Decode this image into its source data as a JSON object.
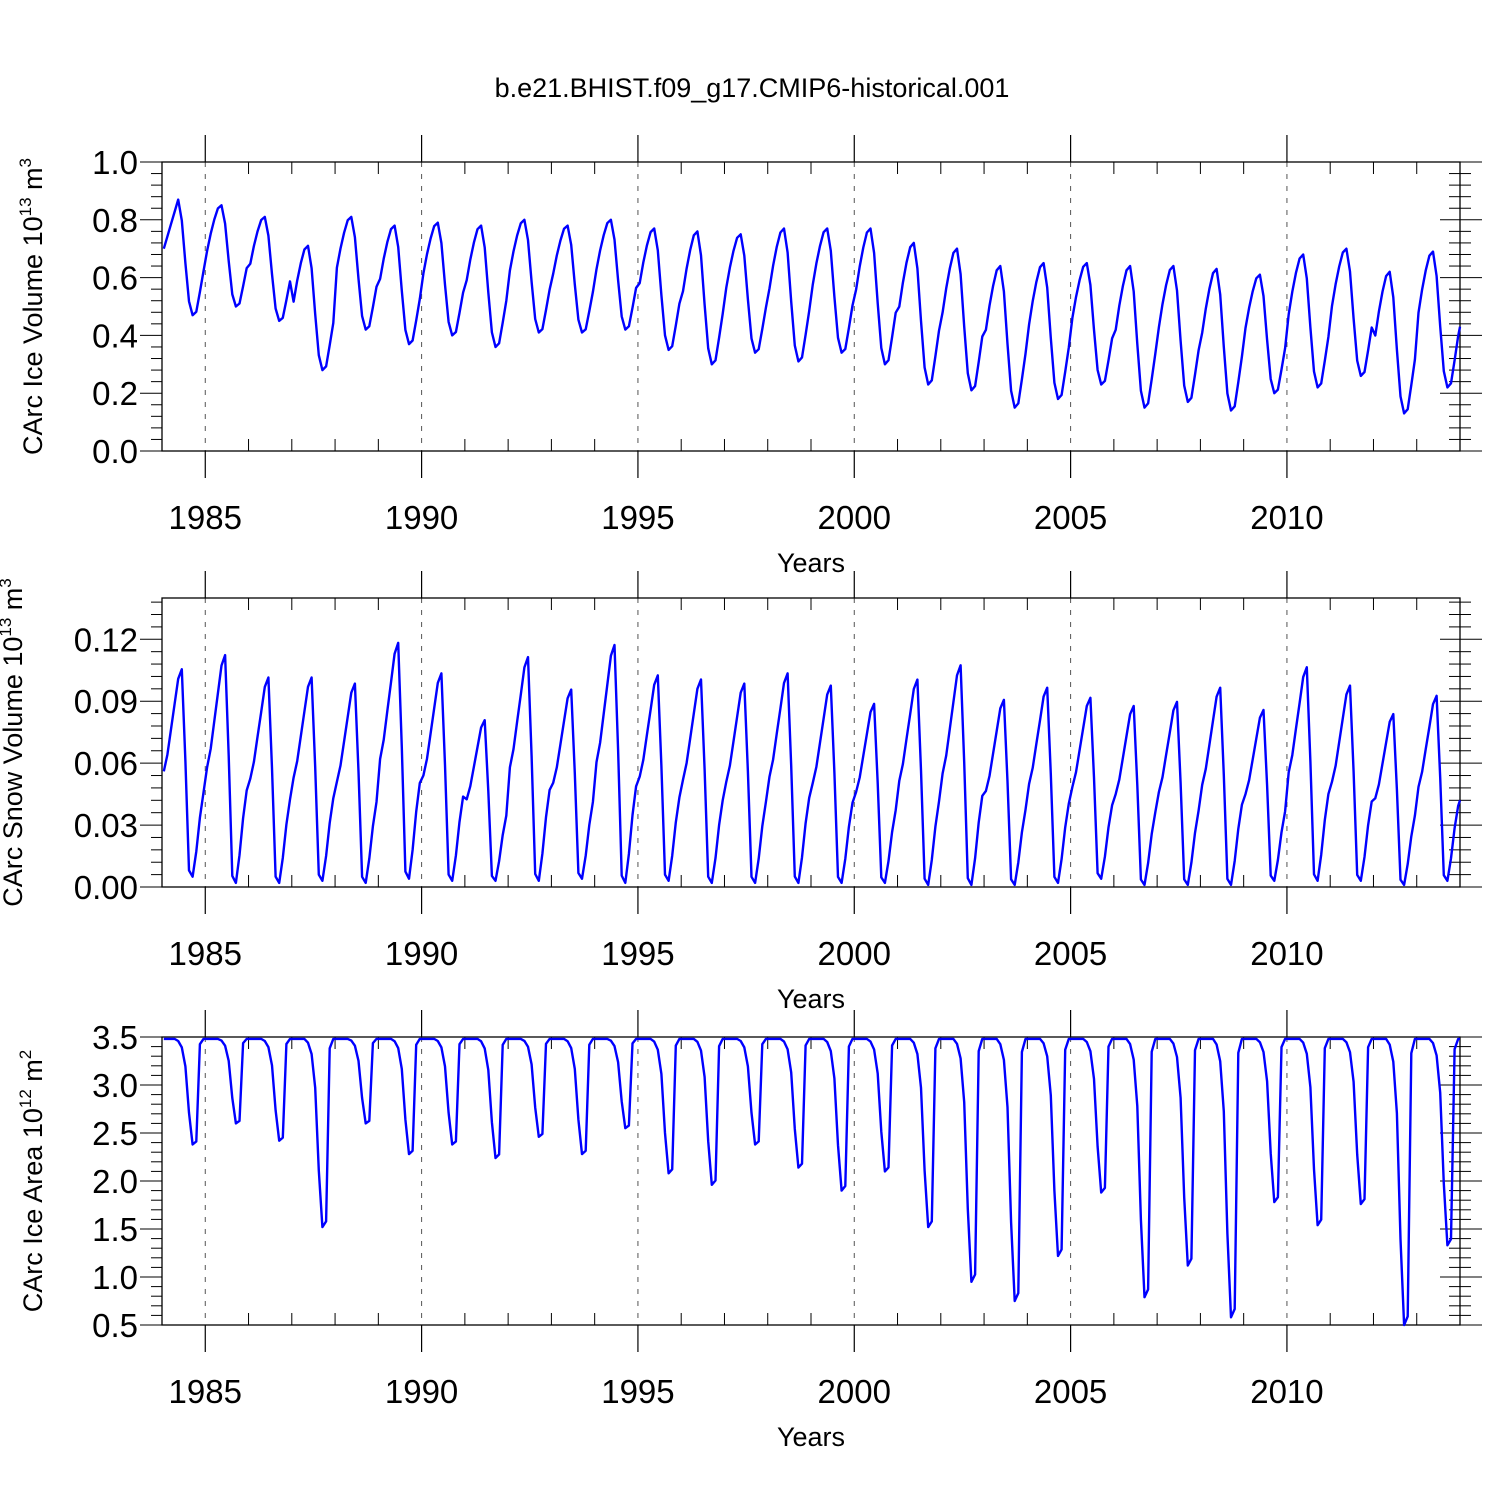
{
  "title": "b.e21.BHIST.f09_g17.CMIP6-historical.001",
  "series_color": "#0000ff",
  "chart_data": [
    {
      "type": "line",
      "id": "ice-volume",
      "ylabel_main": "CArc Ice Volume 10",
      "ylabel_exp": "13",
      "ylabel_unit": " m",
      "ylabel_unit_exp": "3",
      "xlabel": "Years",
      "xlim": [
        1984.0,
        2014.0
      ],
      "ylim": [
        0.0,
        1.0
      ],
      "yticks": [
        0.0,
        0.2,
        0.4,
        0.6,
        0.8,
        1.0
      ],
      "yticklabels": [
        "0.0",
        "0.2",
        "0.4",
        "0.6",
        "0.8",
        "1.0"
      ],
      "xticks": [
        1985,
        1990,
        1995,
        2000,
        2005,
        2010
      ],
      "xticklabels": [
        "1985",
        "1990",
        "1995",
        "2000",
        "2005",
        "2010"
      ],
      "grid": "vertical dashed at major x ticks",
      "min_month": 9,
      "annual": {
        "years": [
          1984,
          1985,
          1986,
          1987,
          1988,
          1989,
          1990,
          1991,
          1992,
          1993,
          1994,
          1995,
          1996,
          1997,
          1998,
          1999,
          2000,
          2001,
          2002,
          2003,
          2004,
          2005,
          2006,
          2007,
          2008,
          2009,
          2010,
          2011,
          2012,
          2013
        ],
        "max": [
          0.87,
          0.85,
          0.81,
          0.71,
          0.81,
          0.78,
          0.79,
          0.78,
          0.8,
          0.78,
          0.8,
          0.77,
          0.76,
          0.75,
          0.77,
          0.77,
          0.77,
          0.72,
          0.7,
          0.64,
          0.65,
          0.65,
          0.64,
          0.64,
          0.63,
          0.61,
          0.68,
          0.7,
          0.62,
          0.69
        ],
        "min": [
          0.47,
          0.5,
          0.45,
          0.28,
          0.42,
          0.37,
          0.4,
          0.36,
          0.41,
          0.41,
          0.42,
          0.35,
          0.3,
          0.34,
          0.31,
          0.34,
          0.3,
          0.23,
          0.21,
          0.15,
          0.18,
          0.23,
          0.15,
          0.17,
          0.14,
          0.2,
          0.22,
          0.26,
          0.13,
          0.22
        ]
      },
      "start_value": 0.7,
      "end_value": 0.43
    },
    {
      "type": "line",
      "id": "snow-volume",
      "ylabel_main": "CArc Snow Volume 10",
      "ylabel_exp": "13",
      "ylabel_unit": " m",
      "ylabel_unit_exp": "3",
      "xlabel": "Years",
      "xlim": [
        1984.0,
        2014.0
      ],
      "ylim": [
        0.0,
        0.14
      ],
      "yticks": [
        0.0,
        0.03,
        0.06,
        0.09,
        0.12
      ],
      "yticklabels": [
        "0.00",
        "0.03",
        "0.06",
        "0.09",
        "0.12"
      ],
      "xticks": [
        1985,
        1990,
        1995,
        2000,
        2005,
        2010
      ],
      "xticklabels": [
        "1985",
        "1990",
        "1995",
        "2000",
        "2005",
        "2010"
      ],
      "grid": "vertical dashed at major x ticks",
      "min_month": 8,
      "annual": {
        "years": [
          1984,
          1985,
          1986,
          1987,
          1988,
          1989,
          1990,
          1991,
          1992,
          1993,
          1994,
          1995,
          1996,
          1997,
          1998,
          1999,
          2000,
          2001,
          2002,
          2003,
          2004,
          2005,
          2006,
          2007,
          2008,
          2009,
          2010,
          2011,
          2012,
          2013
        ],
        "max": [
          0.107,
          0.114,
          0.103,
          0.103,
          0.1,
          0.12,
          0.105,
          0.082,
          0.113,
          0.097,
          0.119,
          0.104,
          0.102,
          0.1,
          0.105,
          0.099,
          0.09,
          0.102,
          0.109,
          0.092,
          0.098,
          0.093,
          0.089,
          0.091,
          0.098,
          0.087,
          0.108,
          0.099,
          0.085,
          0.094
        ],
        "min": [
          0.005,
          0.002,
          0.002,
          0.003,
          0.002,
          0.004,
          0.003,
          0.003,
          0.003,
          0.004,
          0.002,
          0.003,
          0.002,
          0.002,
          0.002,
          0.002,
          0.002,
          0.001,
          0.001,
          0.001,
          0.002,
          0.004,
          0.001,
          0.001,
          0.001,
          0.003,
          0.003,
          0.003,
          0.001,
          0.003
        ]
      },
      "start_value": 0.061,
      "end_value": 0.042
    },
    {
      "type": "line",
      "id": "ice-area",
      "ylabel_main": "CArc Ice Area 10",
      "ylabel_exp": "12",
      "ylabel_unit": " m",
      "ylabel_unit_exp": "2",
      "xlabel": "Years",
      "xlim": [
        1984.0,
        2014.0
      ],
      "ylim": [
        0.5,
        3.5
      ],
      "yticks": [
        0.5,
        1.0,
        1.5,
        2.0,
        2.5,
        3.0,
        3.5
      ],
      "yticklabels": [
        "0.5",
        "1.0",
        "1.5",
        "2.0",
        "2.5",
        "3.0",
        "3.5"
      ],
      "xticks": [
        1985,
        1990,
        1995,
        2000,
        2005,
        2010
      ],
      "xticklabels": [
        "1985",
        "1990",
        "1995",
        "2000",
        "2005",
        "2010"
      ],
      "grid": "vertical dashed at major x ticks",
      "min_month": 9,
      "annual": {
        "years": [
          1984,
          1985,
          1986,
          1987,
          1988,
          1989,
          1990,
          1991,
          1992,
          1993,
          1994,
          1995,
          1996,
          1997,
          1998,
          1999,
          2000,
          2001,
          2002,
          2003,
          2004,
          2005,
          2006,
          2007,
          2008,
          2009,
          2010,
          2011,
          2012,
          2013
        ],
        "max": [
          3.48,
          3.48,
          3.48,
          3.48,
          3.48,
          3.48,
          3.48,
          3.48,
          3.48,
          3.48,
          3.48,
          3.48,
          3.48,
          3.48,
          3.48,
          3.48,
          3.48,
          3.48,
          3.48,
          3.48,
          3.48,
          3.48,
          3.48,
          3.48,
          3.48,
          3.48,
          3.48,
          3.48,
          3.48,
          3.48
        ],
        "min": [
          2.38,
          2.6,
          2.42,
          1.52,
          2.6,
          2.28,
          2.38,
          2.24,
          2.46,
          2.28,
          2.55,
          2.08,
          1.96,
          2.38,
          2.14,
          1.9,
          2.1,
          1.52,
          0.95,
          0.75,
          1.22,
          1.88,
          0.79,
          1.12,
          0.58,
          1.78,
          1.54,
          1.76,
          0.5,
          1.33
        ]
      },
      "start_value": 3.48,
      "end_value": 3.48
    }
  ]
}
